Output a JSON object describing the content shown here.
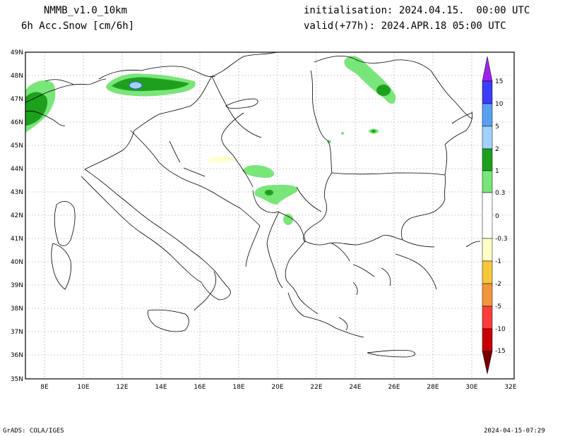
{
  "header": {
    "model": "NMMB_v1.0_10km",
    "field": "6h Acc.Snow [cm/6h]",
    "init": "initialisation: 2024.04.15.  00:00 UTC",
    "valid": "valid(+77h): 2024.APR.18 05:00 UTC"
  },
  "axes": {
    "lat_labels": [
      "49N",
      "48N",
      "47N",
      "46N",
      "45N",
      "44N",
      "43N",
      "42N",
      "41N",
      "40N",
      "39N",
      "38N",
      "37N",
      "36N",
      "35N"
    ],
    "lon_labels": [
      "8E",
      "10E",
      "12E",
      "14E",
      "16E",
      "18E",
      "20E",
      "22E",
      "24E",
      "26E",
      "28E",
      "30E",
      "32E"
    ]
  },
  "legend": {
    "levels": [
      "15",
      "10",
      "5",
      "2",
      "1",
      "0.3",
      "0",
      "-0.3",
      "-1",
      "-2",
      "-5",
      "-10",
      "-15"
    ],
    "colors": {
      "c15": "#a020f0",
      "c10": "#3c3cff",
      "c5": "#5aa0f0",
      "c2": "#a0d2ff",
      "c1": "#1ea01e",
      "c03": "#78e678",
      "c0": "#ffffff",
      "n03": "#ffffc8",
      "n1": "#f5c83c",
      "n2": "#f0963c",
      "n5": "#fa3c3c",
      "n10": "#c80000",
      "n15": "#780000"
    }
  },
  "footer": {
    "left": "GrADS: COLA/IGES",
    "right": "2024-04-15-07:29"
  }
}
